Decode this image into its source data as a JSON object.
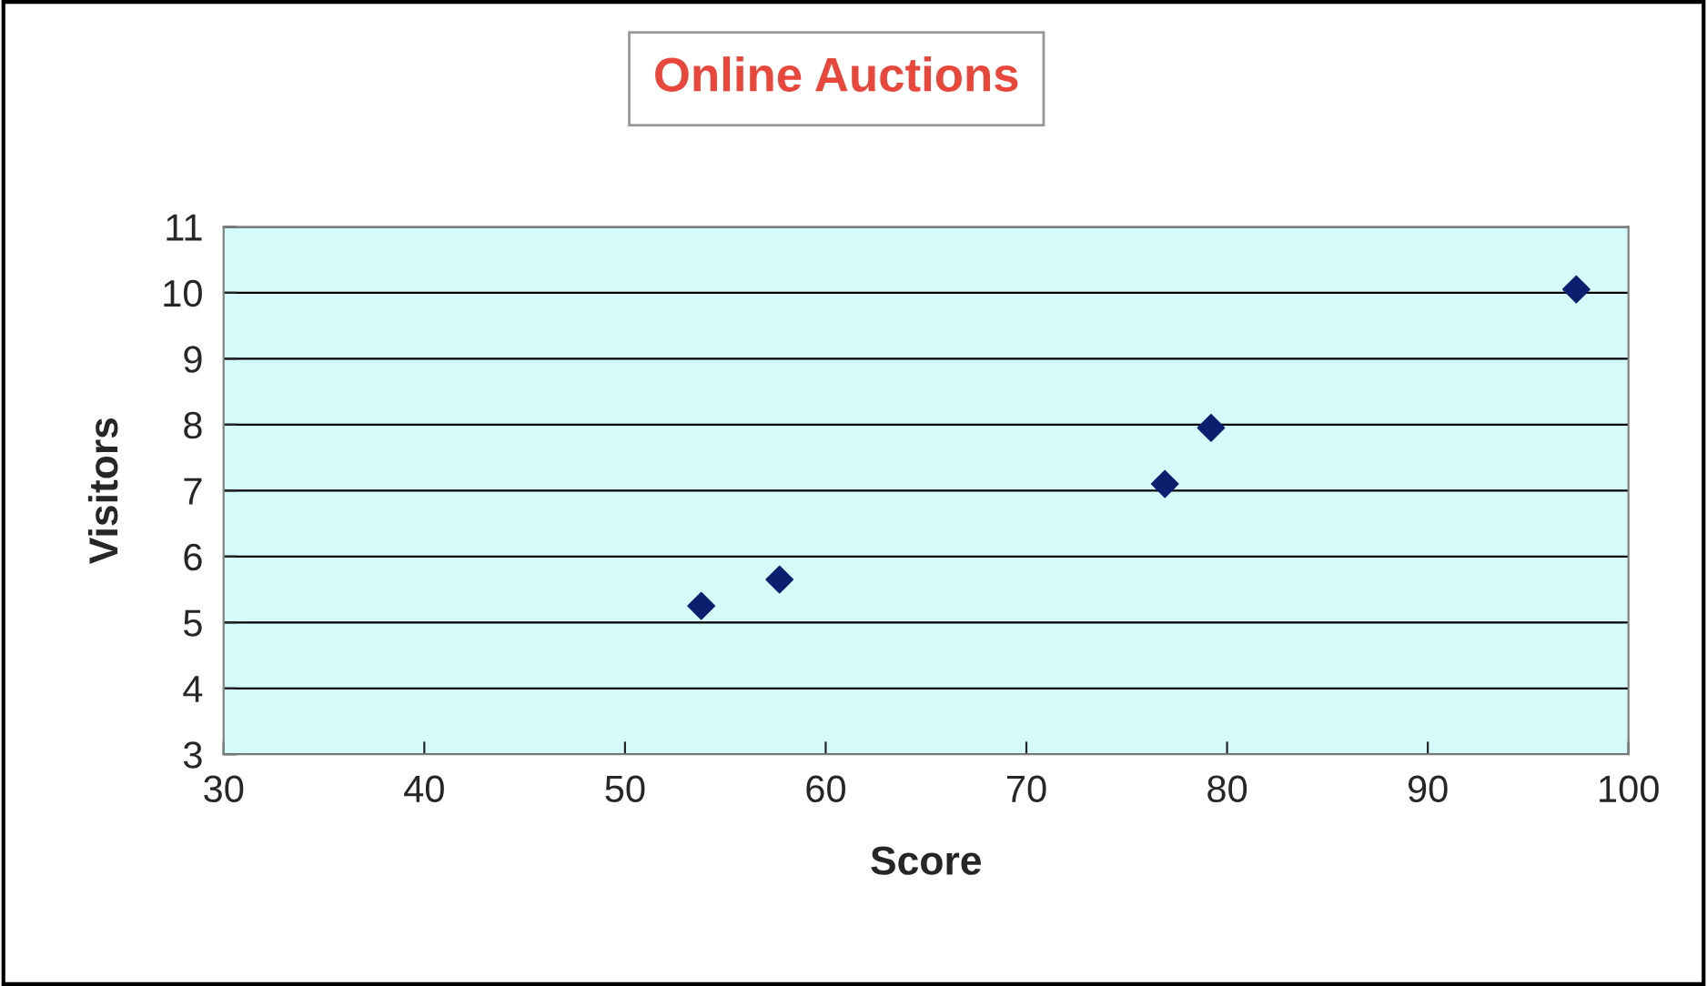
{
  "chart_data": {
    "type": "scatter",
    "title": "Online Auctions",
    "xlabel": "Score",
    "ylabel": "Visitors",
    "x": [
      53.8,
      57.7,
      76.9,
      79.2,
      97.4
    ],
    "series": [
      {
        "color": "#0a1f6e",
        "values": [
          5.25,
          5.65,
          7.1,
          7.95,
          10.05
        ]
      }
    ],
    "xlim": [
      30,
      100
    ],
    "xticks": [
      30,
      40,
      50,
      60,
      70,
      80,
      90,
      100
    ],
    "ylim": [
      3,
      11
    ],
    "yticks": [
      3,
      4,
      5,
      6,
      7,
      8,
      9,
      10,
      11
    ],
    "grid": "y",
    "marker": "diamond"
  }
}
